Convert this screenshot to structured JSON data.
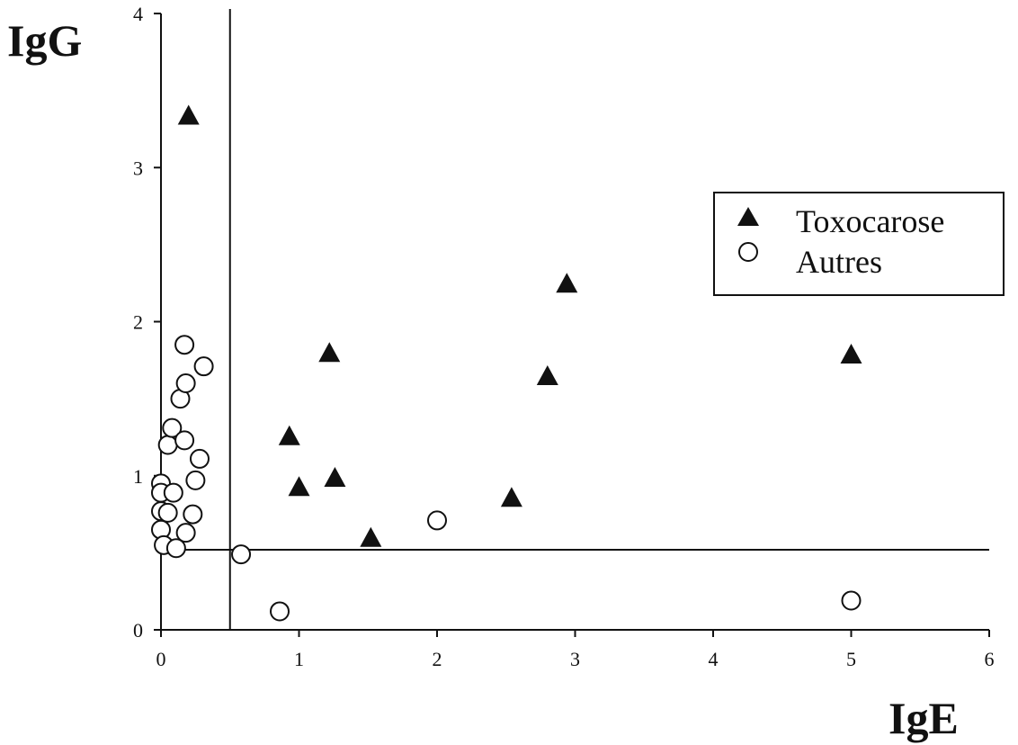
{
  "chart_data": {
    "type": "scatter",
    "title": "",
    "xlabel": "IgE",
    "ylabel": "IgG",
    "xlim": [
      0,
      6
    ],
    "ylim": [
      0,
      4
    ],
    "xticks": [
      "0",
      "1",
      "2",
      "3",
      "4",
      "5",
      "6"
    ],
    "yticks": [
      "0",
      "1",
      "2",
      "3",
      "4"
    ],
    "grid": false,
    "legend_position": "right",
    "threshold_lines": {
      "x": 0.5,
      "y": 0.52
    },
    "series": [
      {
        "name": "Toxocarose",
        "marker": "filled-triangle",
        "points": [
          [
            0.2,
            3.33
          ],
          [
            0.93,
            1.25
          ],
          [
            1.0,
            0.92
          ],
          [
            1.22,
            1.79
          ],
          [
            1.26,
            0.98
          ],
          [
            1.52,
            0.59
          ],
          [
            2.54,
            0.85
          ],
          [
            2.8,
            1.64
          ],
          [
            2.94,
            2.24
          ],
          [
            5.0,
            1.78
          ]
        ]
      },
      {
        "name": "Autres",
        "marker": "open-circle",
        "points": [
          [
            0.0,
            0.95
          ],
          [
            0.0,
            0.89
          ],
          [
            0.0,
            0.77
          ],
          [
            0.0,
            0.65
          ],
          [
            0.02,
            0.55
          ],
          [
            0.05,
            1.2
          ],
          [
            0.05,
            0.76
          ],
          [
            0.08,
            1.31
          ],
          [
            0.09,
            0.89
          ],
          [
            0.11,
            0.53
          ],
          [
            0.14,
            1.5
          ],
          [
            0.17,
            1.85
          ],
          [
            0.17,
            1.23
          ],
          [
            0.18,
            1.6
          ],
          [
            0.18,
            0.63
          ],
          [
            0.23,
            0.75
          ],
          [
            0.25,
            0.97
          ],
          [
            0.28,
            1.11
          ],
          [
            0.31,
            1.71
          ],
          [
            0.58,
            0.49
          ],
          [
            0.86,
            0.12
          ],
          [
            2.0,
            0.71
          ],
          [
            5.0,
            0.19
          ]
        ]
      }
    ]
  }
}
